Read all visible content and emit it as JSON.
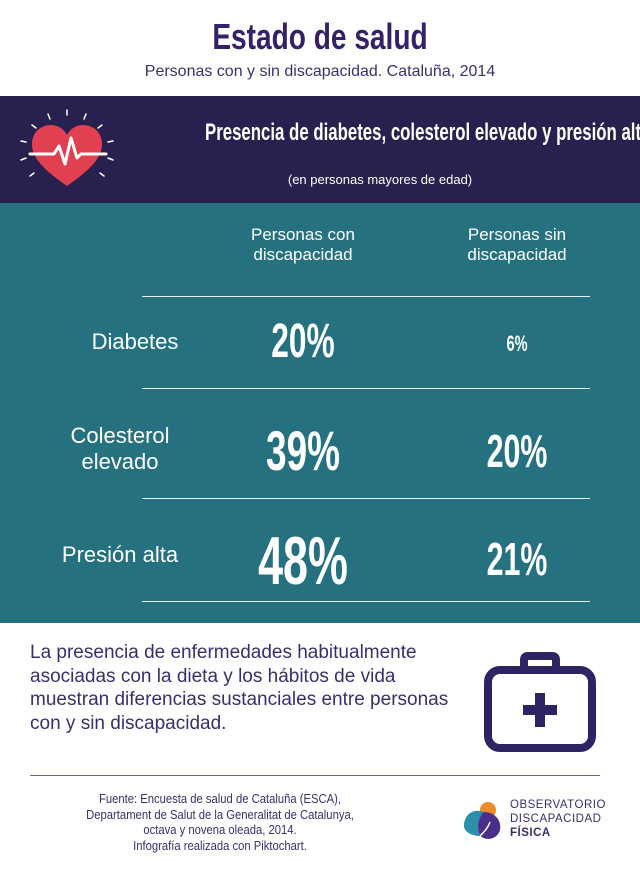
{
  "header": {
    "title": "Estado de salud",
    "subtitle": "Personas con y sin discapacidad. Cataluña, 2014"
  },
  "section": {
    "title": "Presencia de diabetes, colesterol elevado y presión alta",
    "note": "(en personas mayores de edad)",
    "icon": "heart-pulse-icon"
  },
  "table": {
    "columns": [
      "Personas con discapacidad",
      "Personas sin discapacidad"
    ],
    "rows": [
      {
        "label": "Diabetes",
        "con": "20%",
        "sin": "6%"
      },
      {
        "label": "Colesterol elevado",
        "con": "39%",
        "sin": "20%"
      },
      {
        "label": "Presión alta",
        "con": "48%",
        "sin": "21%"
      }
    ]
  },
  "body_text": "La presencia de enfermedades habitualmente asociadas con la dieta y los hábitos de vida muestran diferencias sustanciales entre personas con y sin discapacidad.",
  "footer": {
    "lines": [
      "Fuente: Encuesta de salud de Cataluña (ESCA),",
      "Departament de Salut de la Generalitat de Catalunya,",
      "octava y novena oleada, 2014.",
      "Infografía realizada con Piktochart."
    ]
  },
  "logo": {
    "line1": "OBSERVATORIO",
    "line2": "DISCAPACIDAD",
    "line3": "FÍSICA"
  },
  "colors": {
    "navy": "#28204f",
    "teal": "#26717f",
    "title_purple": "#36206a",
    "heart_red": "#e0404f"
  }
}
